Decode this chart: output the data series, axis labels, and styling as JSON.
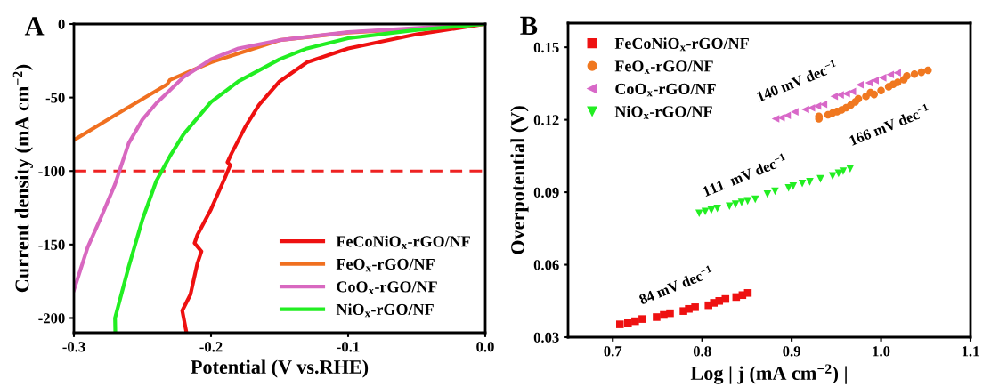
{
  "chart_data": [
    {
      "type": "line",
      "title": "A",
      "xlabel": "Potential (V vs.RHE)",
      "ylabel": "Current density (mA cm$^{−2}$)",
      "xlim": [
        -0.3,
        0.0
      ],
      "xticks": [
        -0.3,
        -0.2,
        -0.1,
        {
          "value": 0.0,
          "label": "0.0"
        }
      ],
      "ylim": [
        -210,
        0
      ],
      "yticks": [
        -200,
        -150,
        -100,
        -50,
        0
      ],
      "legend": "bottom right",
      "grid": false,
      "marker": "none",
      "line_style": "solid",
      "ref_lines": [
        {
          "axis": "y",
          "value": -100,
          "color": "#ee2222",
          "line_style": "dashed"
        }
      ],
      "series": [
        {
          "name": "FeCoNiO$_{x}$-rGO/NF",
          "color": "#ee1111",
          "x": [
            0,
            -0.05,
            -0.1,
            -0.13,
            -0.15,
            -0.165,
            -0.175,
            -0.185,
            -0.188,
            -0.186,
            -0.19,
            -0.2,
            -0.21,
            -0.212,
            -0.207,
            -0.21,
            -0.215,
            -0.221,
            -0.218
          ],
          "values": [
            0,
            -7,
            -16.6,
            -26,
            -39,
            -55,
            -70,
            -88,
            -94,
            -96,
            -105,
            -126,
            -143.6,
            -149,
            -154.7,
            -163,
            -184,
            -195,
            -209.5
          ]
        },
        {
          "name": "FeO$_{x}$-rGO/NF",
          "color": "#f07020",
          "x": [
            0,
            -0.05,
            -0.1,
            -0.15,
            -0.2,
            -0.23,
            -0.232,
            -0.25,
            -0.27,
            -0.3
          ],
          "values": [
            0,
            -3.2,
            -5.8,
            -11,
            -26,
            -38,
            -41,
            -51,
            -62,
            -79
          ]
        },
        {
          "name": "CoO$_{x}$-rGO/NF",
          "color": "#d868c0",
          "x": [
            0,
            -0.1,
            -0.15,
            -0.18,
            -0.2,
            -0.22,
            -0.24,
            -0.25,
            -0.26,
            -0.27,
            -0.28,
            -0.29,
            -0.3
          ],
          "values": [
            0,
            -5.5,
            -11,
            -16.6,
            -24,
            -36,
            -54,
            -65,
            -81,
            -109,
            -131,
            -152,
            -181
          ]
        },
        {
          "name": "NiO$_{x}$-rGO/NF",
          "color": "#22ee22",
          "x": [
            0,
            -0.05,
            -0.1,
            -0.13,
            -0.15,
            -0.18,
            -0.2,
            -0.22,
            -0.23,
            -0.24,
            -0.25,
            -0.26,
            -0.27,
            -0.2698
          ],
          "values": [
            0,
            -4,
            -9.7,
            -16.6,
            -24,
            -39,
            -53,
            -75,
            -90,
            -107,
            -133,
            -165,
            -200,
            -209.5
          ]
        }
      ]
    },
    {
      "type": "scatter",
      "title": "B",
      "xlabel": "Log | j (mA cm$^{−2}$) |",
      "ylabel": "Overpotential (V)",
      "xlim": [
        0.65,
        1.1
      ],
      "xticks": [
        0.7,
        0.8,
        0.9,
        {
          "value": 1.0,
          "label": "1.0"
        },
        1.1
      ],
      "ylim": [
        0.03,
        0.16
      ],
      "yticks": [
        {
          "value": 0.03,
          "label": "0.03"
        },
        {
          "value": 0.06,
          "label": "0.06"
        },
        {
          "value": 0.09,
          "label": "0.09"
        },
        {
          "value": 0.12,
          "label": "0.12"
        },
        {
          "value": 0.15,
          "label": "0.15"
        }
      ],
      "legend": "top left",
      "grid": false,
      "annotations": [
        "84 mV dec$^{−1}$",
        "111  mV dec$^{−1}$",
        "140 mV dec$^{−1}$",
        "166 mV dec$^{−1}$"
      ],
      "series": [
        {
          "name": "FeCoNiO$_{x}$-rGO/NF",
          "color": "#ee1111",
          "marker": "square",
          "x": [
            0.708,
            0.717,
            0.725,
            0.733,
            0.749,
            0.757,
            0.764,
            0.779,
            0.785,
            0.792,
            0.807,
            0.813,
            0.819,
            0.826,
            0.838,
            0.845,
            0.851
          ],
          "values": [
            0.0353,
            0.0358,
            0.0366,
            0.0375,
            0.0383,
            0.0392,
            0.0399,
            0.0408,
            0.0417,
            0.0424,
            0.0432,
            0.0442,
            0.045,
            0.0458,
            0.0466,
            0.0474,
            0.0483
          ]
        },
        {
          "name": "FeO$_{x}$-rGO/NF",
          "color": "#f07820",
          "marker": "circle",
          "x": [
            0.9305,
            0.9305,
            0.9407,
            0.9458,
            0.9508,
            0.9559,
            0.961,
            0.9661,
            0.9712,
            0.9746,
            0.9831,
            0.9881,
            0.9922,
            1.0,
            1.0085,
            1.0136,
            1.0186,
            1.0254,
            1.0288,
            1.0373,
            1.0451,
            1.0525
          ],
          "values": [
            0.1204,
            0.1214,
            0.1221,
            0.1228,
            0.1234,
            0.1241,
            0.125,
            0.1261,
            0.1274,
            0.1287,
            0.1297,
            0.1313,
            0.1305,
            0.1321,
            0.1337,
            0.1347,
            0.1355,
            0.1366,
            0.1382,
            0.1389,
            0.1397,
            0.1405
          ]
        },
        {
          "name": "CoO$_{x}$-rGO/NF",
          "color": "#d868c8",
          "marker": "triangle-left",
          "x": [
            0.882,
            0.8881,
            0.8949,
            0.9034,
            0.9153,
            0.922,
            0.9288,
            0.9356,
            0.9475,
            0.9542,
            0.961,
            0.9678,
            0.9763,
            0.9864,
            0.9932,
            1.0017,
            1.0102,
            1.018
          ],
          "values": [
            0.1204,
            0.1209,
            0.1218,
            0.1233,
            0.1243,
            0.1249,
            0.1257,
            0.1264,
            0.1297,
            0.1303,
            0.1308,
            0.1317,
            0.1345,
            0.1353,
            0.1363,
            0.1374,
            0.1387,
            0.1395
          ]
        },
        {
          "name": "NiO$_{x}$-rGO/NF",
          "color": "#22ee22",
          "marker": "triangle-down",
          "x": [
            0.7966,
            0.8034,
            0.8102,
            0.8169,
            0.8305,
            0.8373,
            0.8441,
            0.8508,
            0.8593,
            0.8729,
            0.8814,
            0.8966,
            0.9017,
            0.9119,
            0.9203,
            0.9322,
            0.9458,
            0.9525,
            0.9576,
            0.9654
          ],
          "values": [
            0.0813,
            0.082,
            0.0826,
            0.0833,
            0.0842,
            0.085,
            0.0858,
            0.0864,
            0.0871,
            0.0892,
            0.0904,
            0.0918,
            0.0925,
            0.0936,
            0.0943,
            0.0955,
            0.0967,
            0.0978,
            0.0987,
            0.0997
          ]
        }
      ]
    }
  ]
}
